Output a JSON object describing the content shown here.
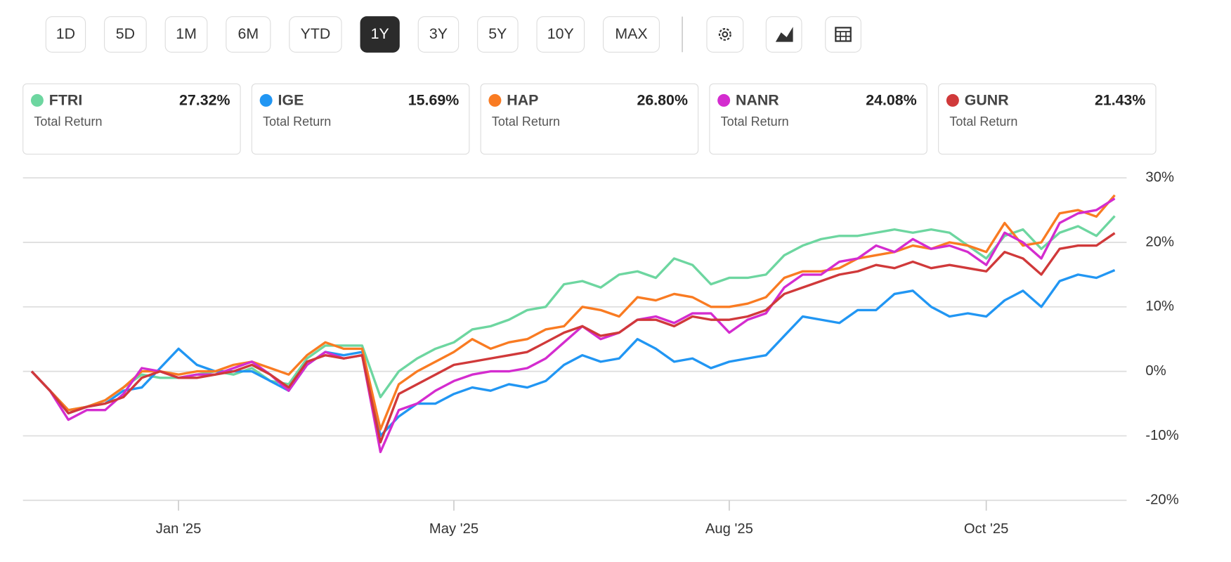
{
  "toolbar": {
    "ranges": [
      {
        "label": "1D",
        "selected": false
      },
      {
        "label": "5D",
        "selected": false
      },
      {
        "label": "1M",
        "selected": false
      },
      {
        "label": "6M",
        "selected": false
      },
      {
        "label": "YTD",
        "selected": false
      },
      {
        "label": "1Y",
        "selected": true
      },
      {
        "label": "3Y",
        "selected": false
      },
      {
        "label": "5Y",
        "selected": false
      },
      {
        "label": "10Y",
        "selected": false
      },
      {
        "label": "MAX",
        "selected": false
      }
    ]
  },
  "cards": [
    {
      "value": "27.32%",
      "label": "Total Return"
    },
    {
      "value": "15.69%",
      "label": "Total Return"
    },
    {
      "value": "26.80%",
      "label": "Total Return"
    },
    {
      "value": "24.08%",
      "label": "Total Return"
    },
    {
      "value": "21.43%",
      "label": "Total Return"
    }
  ],
  "chart_data": {
    "type": "line",
    "grid": true,
    "categories": [
      null,
      null,
      null,
      null,
      null,
      null,
      null,
      null,
      "Jan '25",
      null,
      null,
      null,
      null,
      null,
      null,
      null,
      null,
      null,
      null,
      null,
      null,
      null,
      null,
      "May '25",
      null,
      null,
      null,
      null,
      null,
      null,
      null,
      null,
      null,
      null,
      null,
      null,
      null,
      null,
      "Aug '25",
      null,
      null,
      null,
      null,
      null,
      null,
      null,
      null,
      null,
      null,
      null,
      null,
      null,
      "Oct '25",
      null,
      null,
      null,
      null,
      null,
      null,
      null
    ],
    "ylim": [
      -20,
      30
    ],
    "yticks": [
      {
        "value": 30,
        "label": "30%"
      },
      {
        "value": 20,
        "label": "20%"
      },
      {
        "value": 10,
        "label": "10%"
      },
      {
        "value": 0,
        "label": "0%"
      },
      {
        "value": -10,
        "label": "-10%"
      },
      {
        "value": -20,
        "label": "-20%"
      }
    ],
    "series": [
      {
        "name": "FTRI",
        "color": "#6dd6a0",
        "values": [
          0,
          -3,
          -6,
          -5.5,
          -4.5,
          -2.5,
          -0.5,
          -1,
          -1,
          -0.5,
          0,
          -0.5,
          0.5,
          -1.5,
          -2,
          2,
          4,
          4,
          4,
          -4,
          0,
          2,
          3.5,
          4.5,
          6.5,
          7,
          8,
          9.5,
          10,
          13.5,
          14,
          13,
          15,
          15.5,
          14.5,
          17.5,
          16.5,
          13.5,
          14.5,
          14.5,
          15,
          18,
          19.5,
          20.5,
          21,
          21,
          21.5,
          22,
          21.5,
          22,
          21.5,
          19.5,
          17.5,
          21,
          22,
          19,
          21.5,
          22.5,
          21,
          24.08
        ]
      },
      {
        "name": "IGE",
        "color": "#2196f3",
        "values": [
          0,
          -3,
          -6.5,
          -5.5,
          -5,
          -3,
          -2.5,
          0.5,
          3.5,
          1,
          0,
          0,
          0,
          -1.5,
          -3,
          1,
          3,
          2.5,
          3,
          -10,
          -7,
          -5,
          -5,
          -3.5,
          -2.5,
          -3,
          -2,
          -2.5,
          -1.5,
          1,
          2.5,
          1.5,
          2,
          5,
          3.5,
          1.5,
          2,
          0.5,
          1.5,
          2,
          2.5,
          5.5,
          8.5,
          8,
          7.5,
          9.5,
          9.5,
          12,
          12.5,
          10,
          8.5,
          9,
          8.5,
          11,
          12.5,
          10,
          14,
          15,
          14.5,
          15.69
        ]
      },
      {
        "name": "HAP",
        "color": "#f97b22",
        "values": [
          0,
          -3,
          -6,
          -5.5,
          -4.5,
          -2.5,
          0,
          0,
          -0.5,
          0,
          0,
          1,
          1.5,
          0.5,
          -0.5,
          2.5,
          4.5,
          3.5,
          3.5,
          -9,
          -2,
          0,
          1.5,
          3,
          5,
          3.5,
          4.5,
          5,
          6.5,
          7,
          10,
          9.5,
          8.5,
          11.5,
          11,
          12,
          11.5,
          10,
          10,
          10.5,
          11.5,
          14.5,
          15.5,
          15.5,
          16,
          17.5,
          18,
          18.5,
          19.5,
          19,
          20,
          19.5,
          18.5,
          23,
          19.5,
          20,
          24.5,
          25,
          24,
          27.32
        ]
      },
      {
        "name": "NANR",
        "color": "#d42ccf",
        "values": [
          0,
          -3,
          -7.5,
          -6,
          -6,
          -3.5,
          0.5,
          0,
          -1,
          -0.5,
          -0.5,
          0.5,
          1.5,
          -0.5,
          -3,
          1,
          3,
          2,
          2.5,
          -12.5,
          -6,
          -5,
          -3,
          -1.5,
          -0.5,
          0,
          0,
          0.5,
          2,
          4.5,
          7,
          5,
          6,
          8,
          8.5,
          7.5,
          9,
          9,
          6,
          8,
          9,
          13,
          15,
          15,
          17,
          17.5,
          19.5,
          18.5,
          20.5,
          19,
          19.5,
          18.5,
          16.5,
          21.5,
          20,
          17.5,
          23,
          24.5,
          25,
          26.8
        ]
      },
      {
        "name": "GUNR",
        "color": "#d0393a",
        "values": [
          0,
          -3,
          -6.5,
          -5.5,
          -5,
          -4,
          -1,
          0,
          -1,
          -1,
          -0.5,
          0,
          1,
          -0.5,
          -2.5,
          1.5,
          2.5,
          2,
          2.5,
          -11,
          -3.5,
          -2,
          -0.5,
          1,
          1.5,
          2,
          2.5,
          3,
          4.5,
          6,
          7,
          5.5,
          6,
          8,
          8,
          7,
          8.5,
          8,
          8,
          8.5,
          9.5,
          12,
          13,
          14,
          15,
          15.5,
          16.5,
          16,
          17,
          16,
          16.5,
          16,
          15.5,
          18.5,
          17.5,
          15,
          19,
          19.5,
          19.5,
          21.43
        ]
      }
    ]
  }
}
